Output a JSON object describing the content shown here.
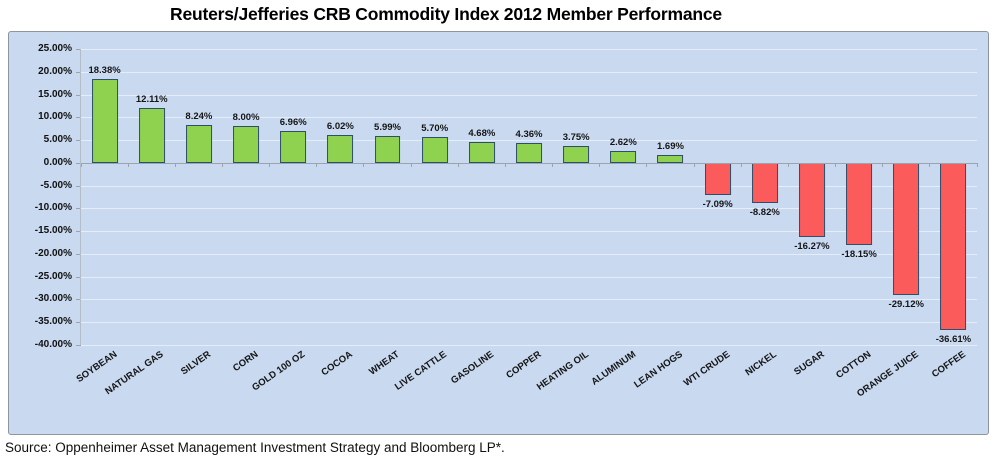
{
  "title": "Reuters/Jefferies CRB Commodity Index 2012 Member Performance",
  "source_note": "Source: Oppenheimer Asset Management Investment Strategy and Bloomberg LP*.",
  "chart_data": {
    "type": "bar",
    "title": "Reuters/Jefferies CRB Commodity Index 2012 Member Performance",
    "categories": [
      "SOYBEAN",
      "NATURAL GAS",
      "SILVER",
      "CORN",
      "GOLD 100 OZ",
      "COCOA",
      "WHEAT",
      "LIVE CATTLE",
      "GASOLINE",
      "COPPER",
      "HEATING OIL",
      "ALUMINUM",
      "LEAN HOGS",
      "WTI CRUDE",
      "NICKEL",
      "SUGAR",
      "COTTON",
      "ORANGE JUICE",
      "COFFEE"
    ],
    "values": [
      18.38,
      12.11,
      8.24,
      8.0,
      6.96,
      6.02,
      5.99,
      5.7,
      4.68,
      4.36,
      3.75,
      2.62,
      1.69,
      -7.09,
      -8.82,
      -16.27,
      -18.15,
      -29.12,
      -36.61
    ],
    "value_labels": [
      "18.38%",
      "12.11%",
      "8.24%",
      "8.00%",
      "6.96%",
      "6.02%",
      "5.99%",
      "5.70%",
      "4.68%",
      "4.36%",
      "3.75%",
      "2.62%",
      "1.69%",
      "-7.09%",
      "-8.82%",
      "-16.27%",
      "-18.15%",
      "-29.12%",
      "-36.61%"
    ],
    "xlabel": "",
    "ylabel": "",
    "ylim": [
      -40,
      25
    ],
    "y_tick_values": [
      25,
      20,
      15,
      10,
      5,
      0,
      -5,
      -10,
      -15,
      -20,
      -25,
      -30,
      -35,
      -40
    ],
    "y_tick_labels": [
      "25.00%",
      "20.00%",
      "15.00%",
      "10.00%",
      "5.00%",
      "0.00%",
      "-5.00%",
      "-10.00%",
      "-15.00%",
      "-20.00%",
      "-25.00%",
      "-30.00%",
      "-35.00%",
      "-40.00%"
    ],
    "grid": true,
    "legend": "none",
    "colors": {
      "positive_bar": "#8fd24f",
      "negative_bar": "#fc5b5b",
      "bar_border": "#2e4f6b",
      "plot_background": "#c8d9f0",
      "gridline": "#e4edf9",
      "axis_line": "#9ca3aa",
      "chart_border": "#8e959c"
    }
  }
}
